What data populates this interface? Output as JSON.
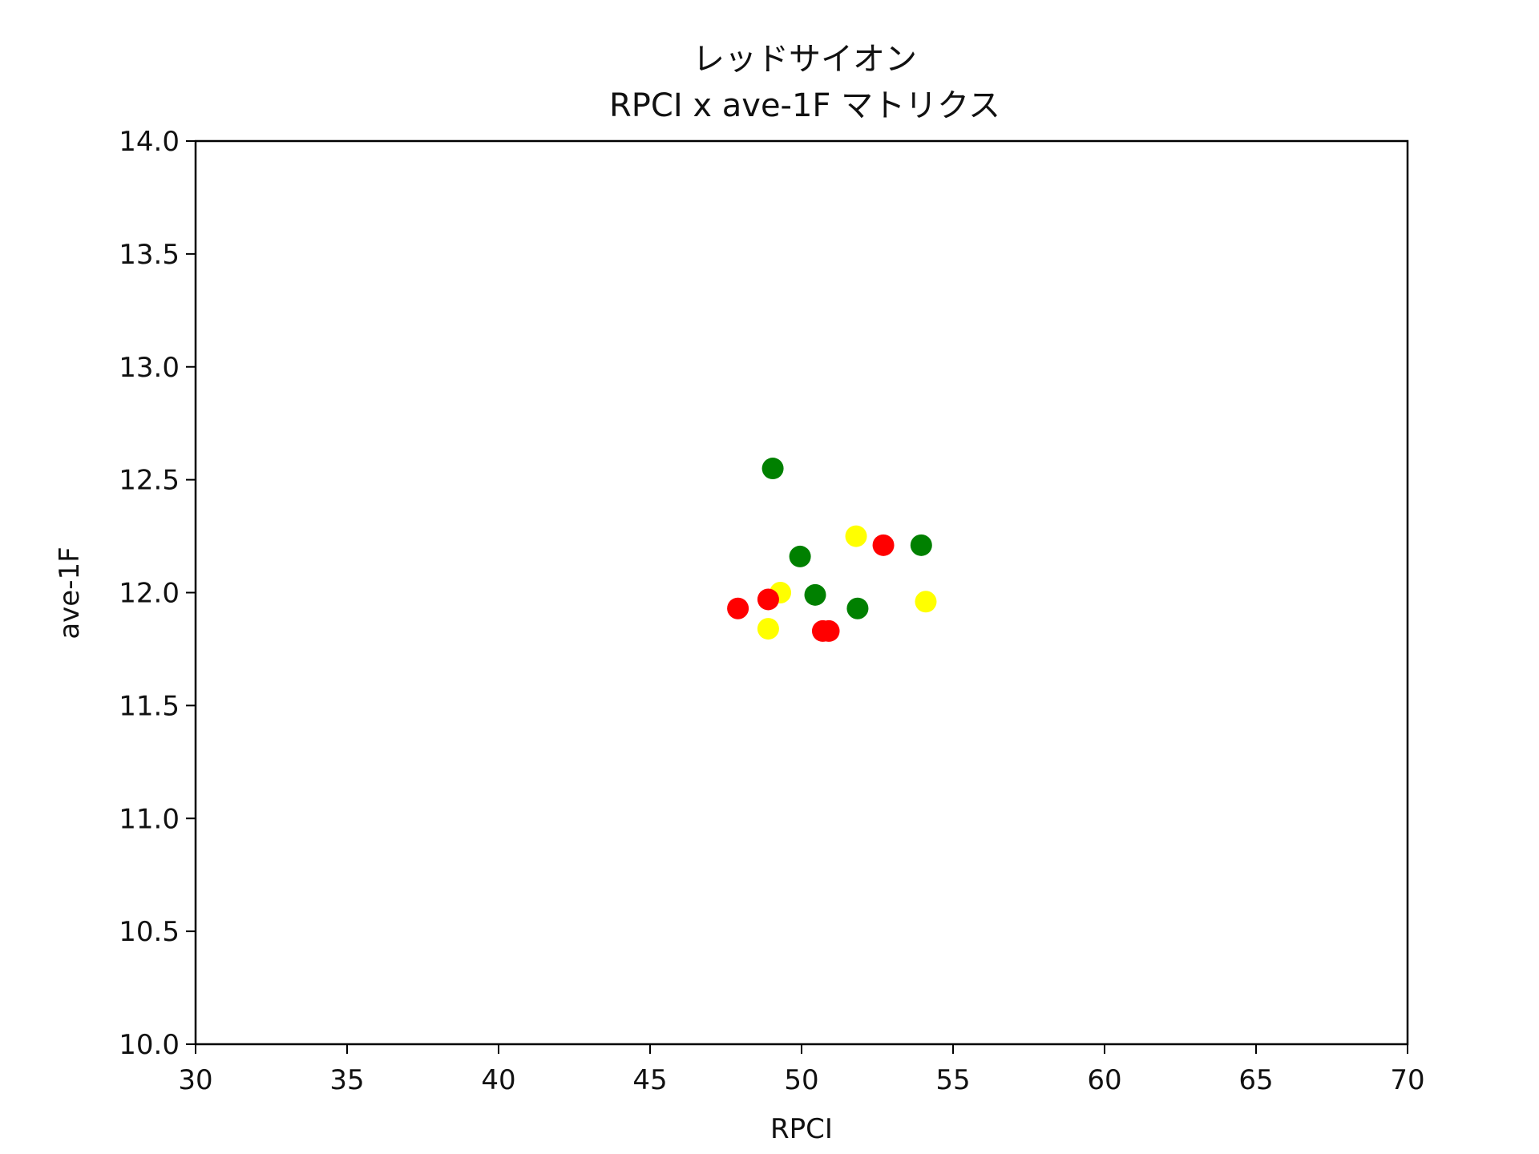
{
  "chart_data": {
    "type": "scatter",
    "title": "レッドサイオン",
    "subtitle": "RPCI x ave-1F マトリクス",
    "xlabel": "RPCI",
    "ylabel": "ave-1F",
    "xlim": [
      30,
      70
    ],
    "ylim": [
      10.0,
      14.0
    ],
    "x_ticks": [
      "30",
      "35",
      "40",
      "45",
      "50",
      "55",
      "60",
      "65",
      "70"
    ],
    "y_ticks": [
      "10.0",
      "10.5",
      "11.0",
      "11.5",
      "12.0",
      "12.5",
      "13.0",
      "13.5",
      "14.0"
    ],
    "grid": false,
    "points": [
      {
        "x": 49.05,
        "y": 12.55,
        "color": "#008000"
      },
      {
        "x": 49.95,
        "y": 12.16,
        "color": "#008000"
      },
      {
        "x": 50.45,
        "y": 11.99,
        "color": "#008000"
      },
      {
        "x": 51.85,
        "y": 11.93,
        "color": "#008000"
      },
      {
        "x": 53.95,
        "y": 12.21,
        "color": "#008000"
      },
      {
        "x": 51.8,
        "y": 12.25,
        "color": "#ffff00"
      },
      {
        "x": 49.3,
        "y": 12.0,
        "color": "#ffff00"
      },
      {
        "x": 48.9,
        "y": 11.84,
        "color": "#ffff00"
      },
      {
        "x": 54.1,
        "y": 11.96,
        "color": "#ffff00"
      },
      {
        "x": 52.7,
        "y": 12.21,
        "color": "#ff0000"
      },
      {
        "x": 47.9,
        "y": 11.93,
        "color": "#ff0000"
      },
      {
        "x": 48.9,
        "y": 11.97,
        "color": "#ff0000"
      },
      {
        "x": 50.7,
        "y": 11.83,
        "color": "#ff0000"
      },
      {
        "x": 50.9,
        "y": 11.83,
        "color": "#ff0000"
      }
    ]
  }
}
